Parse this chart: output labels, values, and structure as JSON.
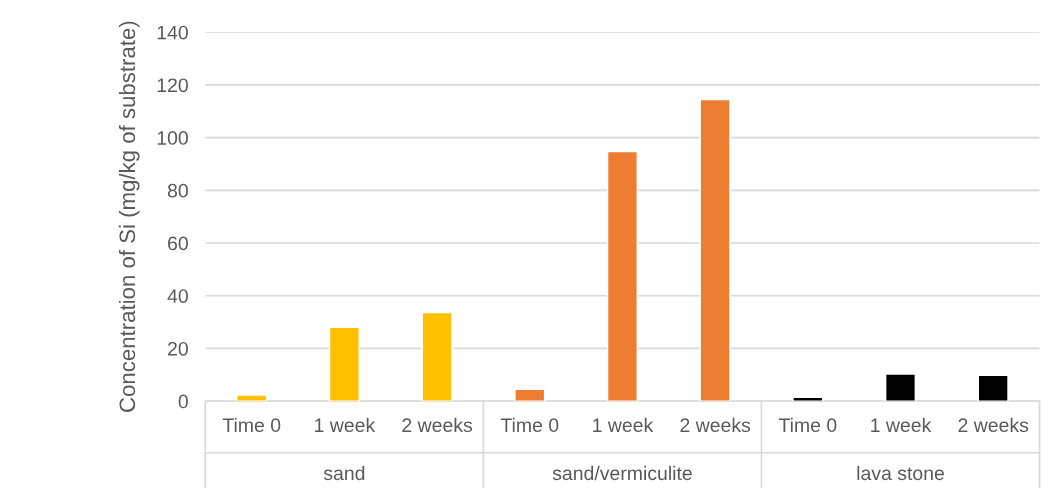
{
  "chart_data": {
    "type": "bar",
    "categories": [
      "Time 0",
      "1 week",
      "2 weeks",
      "Time 0",
      "1 week",
      "2 weeks",
      "Time 0",
      "1 week",
      "2 weeks"
    ],
    "values": [
      2.3,
      28,
      33.6,
      4.5,
      94.7,
      114.4,
      1.5,
      10.3,
      9.8
    ],
    "colors": [
      "#ffc000",
      "#ffc000",
      "#ffc000",
      "#ed7d31",
      "#ed7d31",
      "#ed7d31",
      "#000000",
      "#000000",
      "#000000"
    ],
    "ylabel": "Concentration of Si (mg/kg of substrate)",
    "annotations": [
      "sand",
      "sand/vermiculite",
      "lava stone"
    ],
    "ylim": [
      0,
      140
    ],
    "yticks": [
      0,
      20,
      40,
      60,
      80,
      100,
      120,
      140
    ],
    "grid": "y"
  }
}
